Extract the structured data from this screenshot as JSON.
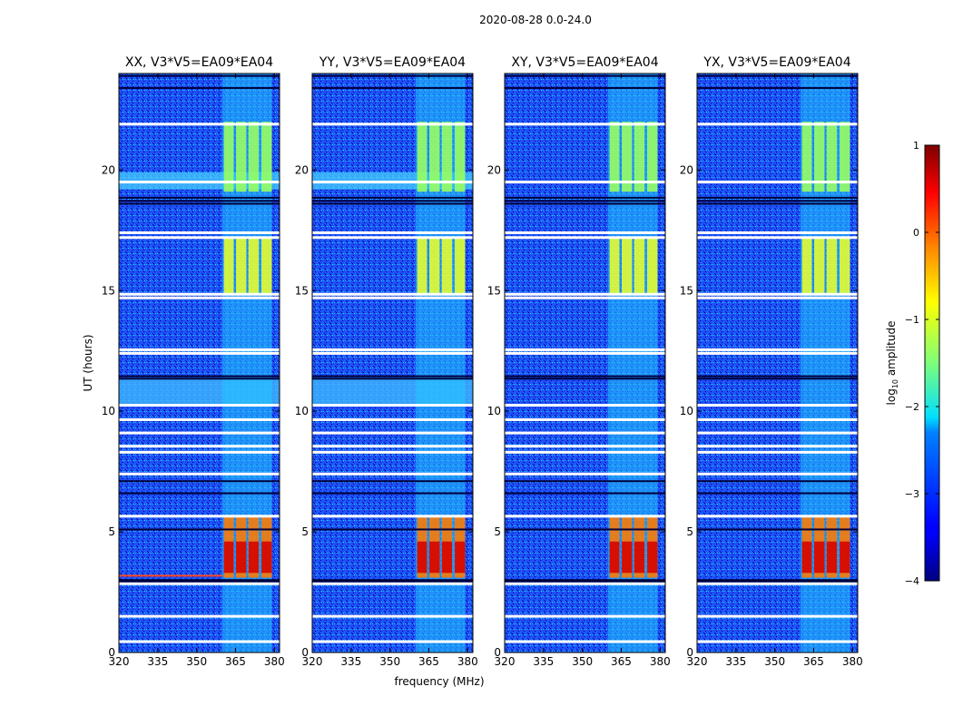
{
  "figure_title": "2020-08-28 0.0-24.0",
  "chart_data": {
    "type": "heatmap",
    "title": "2020-08-28 0.0-24.0",
    "xlabel": "frequency (MHz)",
    "ylabel": "UT (hours)",
    "xlim": [
      320,
      382
    ],
    "ylim": [
      0,
      24
    ],
    "xticks": [
      320,
      335,
      350,
      365,
      380
    ],
    "yticks": [
      0,
      5,
      10,
      15,
      20
    ],
    "panels": [
      {
        "title": "XX, V3*V5=EA09*EA04",
        "quiet_band": [
          10.3,
          11.4
        ]
      },
      {
        "title": "YY, V3*V5=EA09*EA04",
        "quiet_band": [
          10.3,
          11.4
        ]
      },
      {
        "title": "XY, V3*V5=EA09*EA04",
        "quiet_band": null
      },
      {
        "title": "YX, V3*V5=EA09*EA04",
        "quiet_band": null
      }
    ],
    "rfi_band_mhz": [
      360,
      379
    ],
    "rfi_subchannels_mhz": [
      [
        360.5,
        364.3
      ],
      [
        365.2,
        369.2
      ],
      [
        370.0,
        374.0
      ],
      [
        375.0,
        379.0
      ]
    ],
    "gap_hours": [
      0.45,
      1.5,
      2.85,
      5.65,
      7.4,
      8.3,
      8.55,
      9.1,
      9.65,
      10.25,
      12.4,
      12.55,
      14.7,
      14.85,
      17.2,
      17.4,
      19.5,
      21.9
    ],
    "dark_hours": [
      2.95,
      3.0,
      5.1,
      6.6,
      7.1,
      11.35,
      11.45,
      18.6,
      18.72,
      18.85,
      23.4,
      23.9
    ],
    "colorbar": {
      "label_prefix": "log",
      "label_sub": "10",
      "label_suffix": " amplitude",
      "range": [
        -4,
        1
      ],
      "ticks": [
        -4,
        -3,
        -2,
        -1,
        0,
        1
      ],
      "tick_labels": [
        "−4",
        "−3",
        "−2",
        "−1",
        "0",
        "1"
      ]
    }
  }
}
